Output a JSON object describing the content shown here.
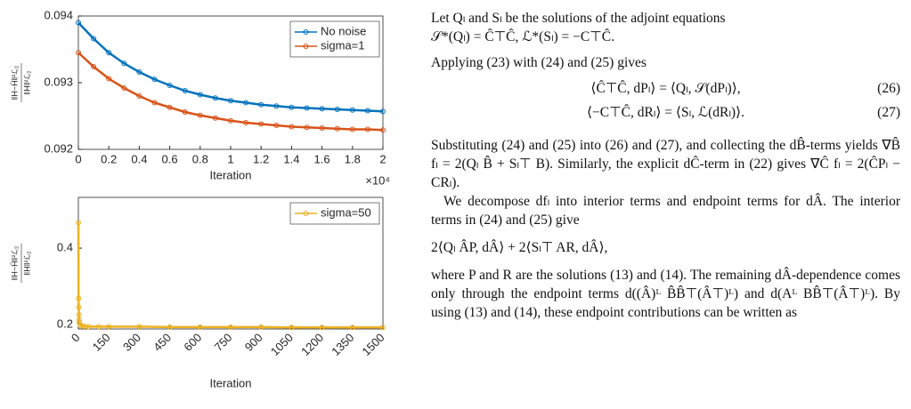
{
  "chart_data": [
    {
      "type": "line",
      "ylabel": {
        "numerator": "‖H−Ĥ‖²ℒ₂",
        "denominator": "‖H‖²ℒ₂"
      },
      "xlabel": "Iteration",
      "x_multiplier": "×10⁴",
      "x": [
        0,
        1000,
        2000,
        3000,
        4000,
        5000,
        6000,
        7000,
        8000,
        9000,
        10000,
        11000,
        12000,
        13000,
        14000,
        15000,
        16000,
        17000,
        18000,
        19000,
        20000
      ],
      "series": [
        {
          "name": "No noise",
          "color": "#0072BD",
          "values": [
            0.0939,
            0.09366,
            0.09345,
            0.09329,
            0.09316,
            0.09305,
            0.09296,
            0.09288,
            0.09282,
            0.09277,
            0.09273,
            0.0927,
            0.09267,
            0.09265,
            0.09263,
            0.09262,
            0.09261,
            0.0926,
            0.09259,
            0.09258,
            0.09257
          ]
        },
        {
          "name": "sigma=1",
          "color": "#D95319",
          "values": [
            0.09345,
            0.09324,
            0.09306,
            0.09292,
            0.0928,
            0.0927,
            0.09263,
            0.09256,
            0.09251,
            0.09247,
            0.09243,
            0.0924,
            0.09238,
            0.09236,
            0.09234,
            0.09233,
            0.09232,
            0.09231,
            0.0923,
            0.0923,
            0.09229
          ]
        }
      ],
      "xlim": [
        0,
        20000
      ],
      "xticks": [
        0,
        {
          "value": 2000,
          "label": "0.2"
        },
        {
          "value": 4000,
          "label": "0.4"
        },
        {
          "value": 6000,
          "label": "0.6"
        },
        {
          "value": 8000,
          "label": "0.8"
        },
        {
          "value": 10000,
          "label": "1"
        },
        {
          "value": 12000,
          "label": "1.2"
        },
        {
          "value": 14000,
          "label": "1.4"
        },
        {
          "value": 16000,
          "label": "1.6"
        },
        {
          "value": 18000,
          "label": "1.8"
        },
        {
          "value": 20000,
          "label": "2"
        }
      ],
      "ylim": [
        0.092,
        0.094
      ],
      "yticks": [
        0.092,
        0.093,
        0.094
      ],
      "legend": "northeast",
      "rotate_xticks": false
    },
    {
      "type": "line",
      "ylabel": {
        "numerator": "‖H−Ĥ‖²ℒ₂",
        "denominator": "‖H‖²ℒ₂"
      },
      "xlabel": "Iteration",
      "x": [
        0,
        1,
        2,
        3,
        4,
        5,
        10,
        20,
        30,
        50,
        100,
        150,
        300,
        450,
        600,
        750,
        900,
        1050,
        1200,
        1350,
        1500
      ],
      "series": [
        {
          "name": "sigma=50",
          "color": "#EDB120",
          "values": [
            0.467,
            0.268,
            0.245,
            0.225,
            0.212,
            0.205,
            0.198,
            0.196,
            0.195,
            0.194,
            0.194,
            0.194,
            0.194,
            0.193,
            0.193,
            0.193,
            0.193,
            0.192,
            0.192,
            0.192,
            0.192
          ]
        }
      ],
      "xlim": [
        0,
        1500
      ],
      "xticks": [
        0,
        150,
        300,
        450,
        600,
        750,
        900,
        1050,
        1200,
        1350,
        1500
      ],
      "ylim": [
        0.188,
        0.533
      ],
      "yticks": [
        0.2,
        0.4
      ],
      "legend": "northeast",
      "rotate_xticks": true
    }
  ],
  "text": {
    "intro": "Let Qₗ and Sₗ be the solutions of the adjoint equations",
    "eq_adjoint": "𝒮*(Qₗ) = Ĉ⊤Ĉ,        ℒ*(Sₗ) = −C⊤Ĉ.",
    "applying": "Applying (23) with (24) and (25) gives",
    "eq26": "⟨Ĉ⊤Ĉ,  dPₗ⟩ = ⟨Qₗ,  𝒮(dPₗ)⟩,",
    "eq26_num": "(26)",
    "eq27": "⟨−C⊤Ĉ,  dRₗ⟩ = ⟨Sₗ,  ℒ(dRₗ)⟩.",
    "eq27_num": "(27)",
    "para1": "Substituting (24) and (25) into (26) and (27), and collecting the dB̂-terms yields ∇B̂ fₗ = 2(Qₗ B̂ + Sₗ⊤ B). Similarly, the explicit dĈ-term in (22) gives ∇Ĉ fₗ = 2(ĈPₗ − CRₗ).",
    "para2": "We decompose dfₗ into interior terms and endpoint terms for dÂ. The interior terms in (24) and (25) give",
    "eq_interior": "2⟨Qₗ ÂP,  dÂ⟩ + 2⟨Sₗ⊤ AR,  dÂ⟩,",
    "para3": "where P and R are the solutions (13) and (14). The remaining dÂ-dependence comes only through the endpoint terms d((Â)ᴸ B̂B̂⊤(Â⊤)ᴸ) and d(Aᴸ BB̂⊤(Â⊤)ᴸ). By using (13) and (14), these endpoint contributions can be written as"
  }
}
